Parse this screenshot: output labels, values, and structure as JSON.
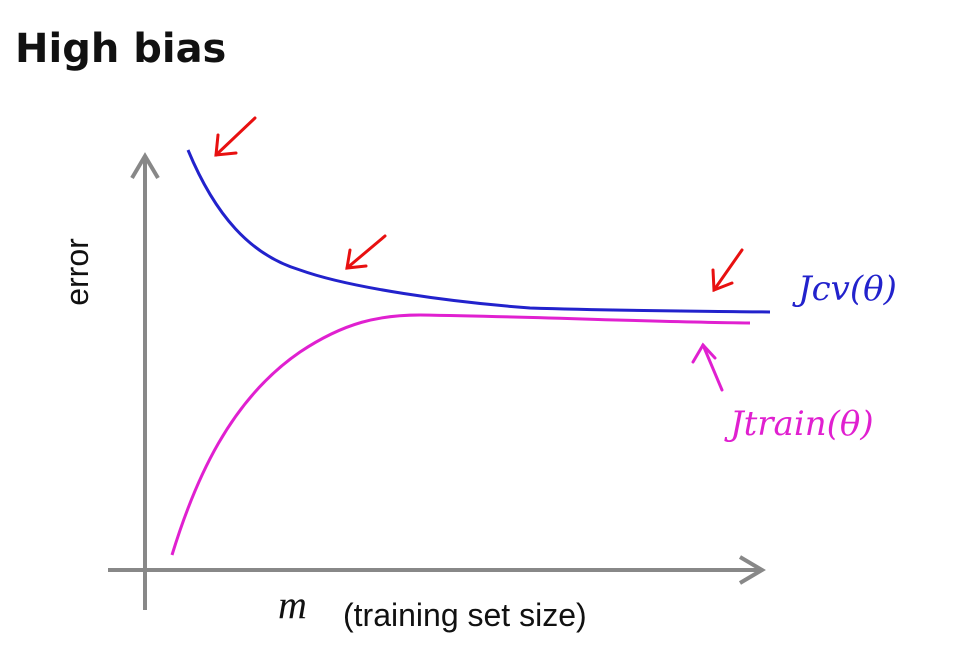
{
  "title": "High bias",
  "y_axis_label": "error",
  "x_axis_variable": "m",
  "x_axis_label": "(training set size)",
  "curves": [
    {
      "label": "Jcv(θ)"
    },
    {
      "label": "Jtrain(θ)"
    }
  ]
}
